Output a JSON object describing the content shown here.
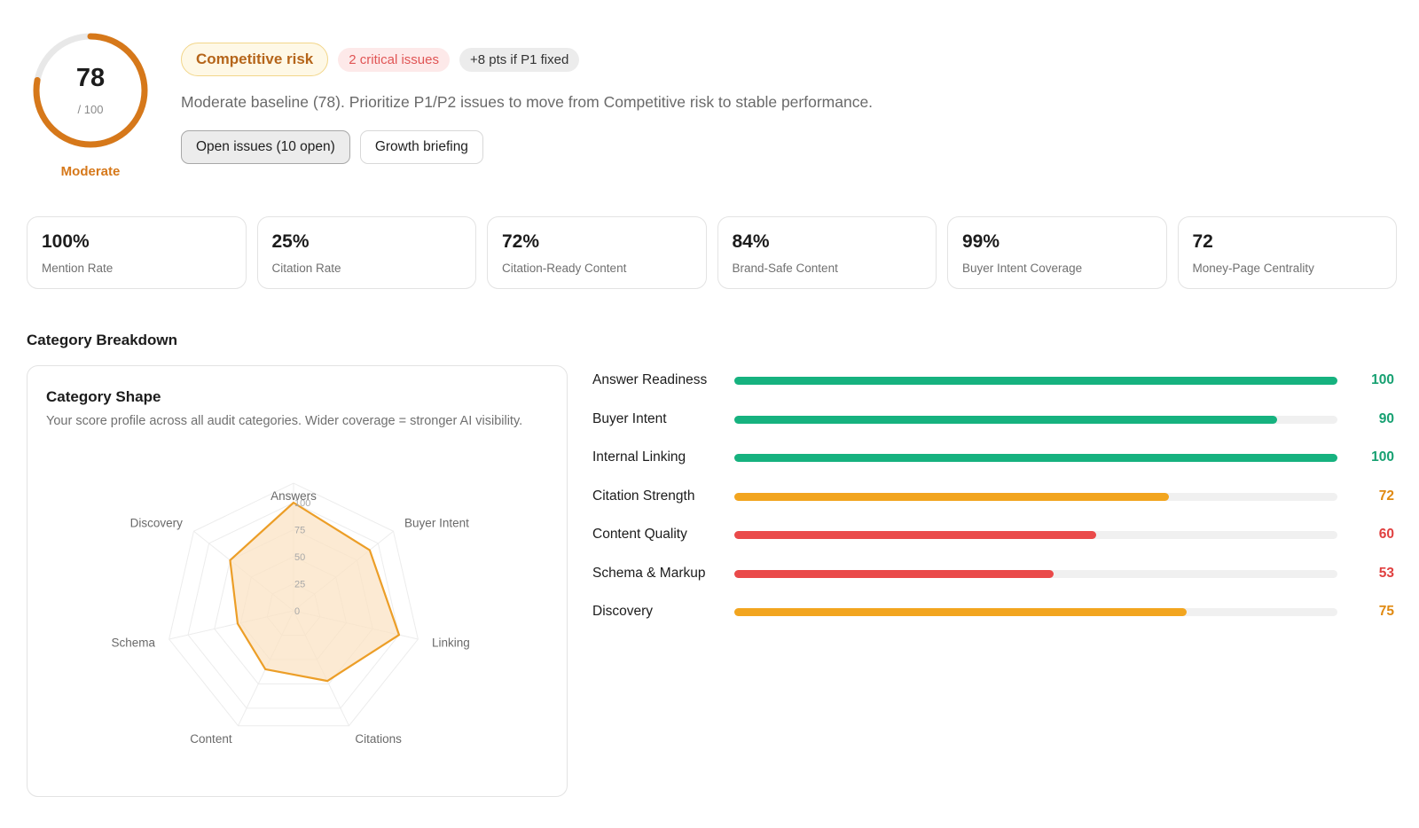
{
  "score": {
    "value": "78",
    "max": 100,
    "denominator": "/ 100",
    "label": "Moderate",
    "ring_color": "#d6781a",
    "track_color": "#e8e8e8"
  },
  "header": {
    "risk_badge": "Competitive risk",
    "critical_badge": "2 critical issues",
    "points_badge": "+8 pts if P1 fixed",
    "summary": "Moderate baseline (78). Prioritize P1/P2 issues to move from Competitive risk to stable performance.",
    "open_issues_button": "Open issues (10 open)",
    "briefing_button": "Growth briefing"
  },
  "metrics": [
    {
      "value": "100%",
      "label": "Mention Rate"
    },
    {
      "value": "25%",
      "label": "Citation Rate"
    },
    {
      "value": "72%",
      "label": "Citation-Ready Content"
    },
    {
      "value": "84%",
      "label": "Brand-Safe Content"
    },
    {
      "value": "99%",
      "label": "Buyer Intent Coverage"
    },
    {
      "value": "72",
      "label": "Money-Page Centrality"
    }
  ],
  "breakdown": {
    "title": "Category Breakdown",
    "card_title": "Category Shape",
    "card_subtitle": "Your score profile across all audit categories. Wider coverage = stronger AI visibility."
  },
  "chart_data": [
    {
      "type": "radar",
      "axes": [
        "Answers",
        "Buyer Intent",
        "Linking",
        "Citations",
        "Content",
        "Schema",
        "Discovery"
      ],
      "values": [
        100,
        90,
        100,
        72,
        60,
        53,
        75
      ],
      "ticks": [
        "0",
        "25",
        "50",
        "75",
        "100"
      ],
      "range": [
        0,
        100
      ],
      "line_color": "#ec9e27",
      "fill_color": "#fbe3c4"
    },
    {
      "type": "bar",
      "orientation": "horizontal",
      "categories": [
        "Answer Readiness",
        "Buyer Intent",
        "Internal Linking",
        "Citation Strength",
        "Content Quality",
        "Schema & Markup",
        "Discovery"
      ],
      "values": [
        100,
        90,
        100,
        72,
        60,
        53,
        75
      ],
      "labels": [
        "100",
        "90",
        "100",
        "72",
        "60",
        "53",
        "75"
      ],
      "range": [
        0,
        100
      ],
      "colors": [
        "#16b27f",
        "#16b27f",
        "#16b27f",
        "#f2a51f",
        "#ea4a4a",
        "#ea4a4a",
        "#f2a51f"
      ],
      "label_colors": [
        "#16a071",
        "#16a071",
        "#16a071",
        "#e08a12",
        "#e04040",
        "#e04040",
        "#e08a12"
      ]
    }
  ]
}
